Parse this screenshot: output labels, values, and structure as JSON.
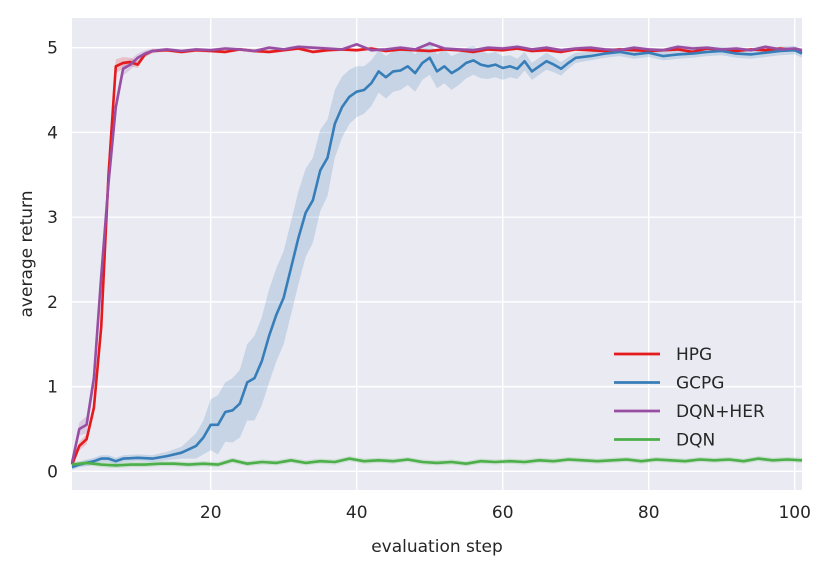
{
  "chart_data": {
    "type": "line",
    "title": "",
    "xlabel": "evaluation step",
    "ylabel": "average return",
    "xlim": [
      1,
      101
    ],
    "ylim": [
      -0.22,
      5.35
    ],
    "xticks": [
      20,
      40,
      60,
      80,
      100
    ],
    "yticks": [
      0,
      1,
      2,
      3,
      4,
      5
    ],
    "grid": true,
    "legend_position": "lower-right",
    "background": "#eaeaf2",
    "series": [
      {
        "name": "HPG",
        "color": "#e41a1c",
        "x": [
          1,
          2,
          3,
          4,
          5,
          6,
          7,
          8,
          9,
          10,
          11,
          12,
          14,
          16,
          18,
          20,
          22,
          24,
          26,
          28,
          30,
          32,
          34,
          36,
          38,
          40,
          42,
          44,
          46,
          48,
          50,
          52,
          54,
          56,
          58,
          60,
          62,
          64,
          66,
          68,
          70,
          72,
          74,
          76,
          78,
          80,
          82,
          84,
          86,
          88,
          90,
          92,
          94,
          96,
          98,
          100,
          101
        ],
        "y": [
          0.08,
          0.3,
          0.38,
          0.75,
          1.7,
          3.5,
          4.78,
          4.82,
          4.83,
          4.8,
          4.92,
          4.96,
          4.97,
          4.95,
          4.97,
          4.96,
          4.95,
          4.98,
          4.96,
          4.95,
          4.97,
          4.99,
          4.95,
          4.97,
          4.98,
          4.97,
          4.99,
          4.96,
          4.98,
          4.97,
          4.96,
          4.98,
          4.97,
          4.95,
          4.98,
          4.97,
          4.99,
          4.96,
          4.97,
          4.95,
          4.98,
          4.97,
          4.96,
          4.98,
          4.97,
          4.96,
          4.97,
          4.98,
          4.95,
          4.99,
          4.97,
          4.96,
          4.98,
          4.97,
          4.99,
          4.97,
          4.96
        ],
        "band": [
          0.05,
          0.05,
          0.06,
          0.08,
          0.08,
          0.1,
          0.08,
          0.07,
          0.05,
          0.04,
          0.03,
          0.02,
          0.02,
          0.02,
          0.02,
          0.02,
          0.02,
          0.02,
          0.02,
          0.02,
          0.02,
          0.02,
          0.02,
          0.02,
          0.02,
          0.02,
          0.02,
          0.02,
          0.02,
          0.02,
          0.02,
          0.02,
          0.02,
          0.02,
          0.02,
          0.02,
          0.02,
          0.02,
          0.02,
          0.02,
          0.02,
          0.02,
          0.02,
          0.02,
          0.02,
          0.02,
          0.02,
          0.02,
          0.02,
          0.02,
          0.02,
          0.02,
          0.02,
          0.02,
          0.02,
          0.02,
          0.02
        ]
      },
      {
        "name": "GCPG",
        "color": "#377eb8",
        "x": [
          1,
          2,
          3,
          4,
          5,
          6,
          7,
          8,
          10,
          12,
          14,
          16,
          18,
          19,
          20,
          21,
          22,
          23,
          24,
          25,
          26,
          27,
          28,
          29,
          30,
          31,
          32,
          33,
          34,
          35,
          36,
          37,
          38,
          39,
          40,
          41,
          42,
          43,
          44,
          45,
          46,
          47,
          48,
          49,
          50,
          51,
          52,
          53,
          54,
          55,
          56,
          57,
          58,
          59,
          60,
          61,
          62,
          63,
          64,
          65,
          66,
          67,
          68,
          69,
          70,
          72,
          74,
          76,
          78,
          80,
          82,
          84,
          86,
          88,
          90,
          92,
          94,
          96,
          98,
          100,
          101
        ],
        "y": [
          0.05,
          0.08,
          0.1,
          0.12,
          0.15,
          0.15,
          0.12,
          0.15,
          0.16,
          0.15,
          0.18,
          0.22,
          0.3,
          0.4,
          0.55,
          0.55,
          0.7,
          0.72,
          0.8,
          1.05,
          1.1,
          1.3,
          1.6,
          1.85,
          2.05,
          2.4,
          2.75,
          3.05,
          3.2,
          3.55,
          3.7,
          4.1,
          4.3,
          4.42,
          4.48,
          4.5,
          4.58,
          4.72,
          4.65,
          4.72,
          4.73,
          4.78,
          4.7,
          4.82,
          4.88,
          4.72,
          4.78,
          4.7,
          4.75,
          4.82,
          4.85,
          4.8,
          4.78,
          4.8,
          4.76,
          4.78,
          4.75,
          4.84,
          4.72,
          4.78,
          4.84,
          4.8,
          4.75,
          4.82,
          4.88,
          4.9,
          4.93,
          4.95,
          4.92,
          4.94,
          4.9,
          4.92,
          4.93,
          4.95,
          4.96,
          4.93,
          4.92,
          4.94,
          4.96,
          4.97,
          4.93
        ],
        "band": [
          0.03,
          0.03,
          0.04,
          0.04,
          0.04,
          0.04,
          0.04,
          0.04,
          0.04,
          0.04,
          0.05,
          0.07,
          0.15,
          0.2,
          0.3,
          0.35,
          0.35,
          0.38,
          0.4,
          0.45,
          0.5,
          0.52,
          0.55,
          0.55,
          0.55,
          0.55,
          0.55,
          0.52,
          0.5,
          0.48,
          0.45,
          0.4,
          0.36,
          0.32,
          0.3,
          0.28,
          0.27,
          0.25,
          0.25,
          0.24,
          0.23,
          0.22,
          0.22,
          0.2,
          0.2,
          0.2,
          0.2,
          0.2,
          0.19,
          0.18,
          0.17,
          0.16,
          0.15,
          0.15,
          0.14,
          0.13,
          0.12,
          0.11,
          0.1,
          0.1,
          0.1,
          0.09,
          0.08,
          0.07,
          0.06,
          0.05,
          0.05,
          0.05,
          0.05,
          0.05,
          0.05,
          0.05,
          0.05,
          0.05,
          0.05,
          0.05,
          0.05,
          0.05,
          0.05,
          0.05,
          0.05
        ]
      },
      {
        "name": "DQN+HER",
        "color": "#984ea3",
        "x": [
          1,
          2,
          3,
          4,
          5,
          6,
          7,
          8,
          9,
          10,
          11,
          12,
          13,
          14,
          16,
          18,
          20,
          22,
          24,
          26,
          28,
          30,
          32,
          34,
          36,
          38,
          40,
          42,
          44,
          46,
          48,
          50,
          52,
          54,
          56,
          58,
          60,
          62,
          64,
          66,
          68,
          70,
          72,
          74,
          76,
          78,
          80,
          82,
          84,
          86,
          88,
          90,
          92,
          94,
          96,
          98,
          100,
          101
        ],
        "y": [
          0.1,
          0.5,
          0.55,
          1.1,
          2.3,
          3.4,
          4.3,
          4.75,
          4.8,
          4.88,
          4.93,
          4.96,
          4.97,
          4.98,
          4.96,
          4.98,
          4.97,
          4.99,
          4.98,
          4.96,
          5.0,
          4.98,
          5.01,
          5.0,
          4.99,
          4.98,
          5.04,
          4.97,
          4.98,
          5.0,
          4.98,
          5.05,
          4.99,
          4.98,
          4.97,
          5.0,
          4.99,
          5.01,
          4.98,
          5.0,
          4.97,
          4.99,
          5.0,
          4.98,
          4.97,
          5.0,
          4.98,
          4.97,
          5.01,
          4.99,
          5.0,
          4.98,
          4.99,
          4.97,
          5.01,
          4.98,
          4.99,
          4.97
        ],
        "band": [
          0.05,
          0.08,
          0.1,
          0.12,
          0.12,
          0.12,
          0.1,
          0.08,
          0.06,
          0.05,
          0.04,
          0.03,
          0.02,
          0.02,
          0.02,
          0.02,
          0.02,
          0.02,
          0.02,
          0.02,
          0.02,
          0.02,
          0.02,
          0.02,
          0.02,
          0.02,
          0.02,
          0.02,
          0.02,
          0.02,
          0.02,
          0.02,
          0.02,
          0.02,
          0.02,
          0.02,
          0.02,
          0.02,
          0.02,
          0.02,
          0.02,
          0.02,
          0.02,
          0.02,
          0.02,
          0.02,
          0.02,
          0.02,
          0.02,
          0.02,
          0.02,
          0.02,
          0.02,
          0.02,
          0.02,
          0.02,
          0.02,
          0.02
        ]
      },
      {
        "name": "DQN",
        "color": "#4daf4a",
        "x": [
          1,
          3,
          5,
          7,
          9,
          11,
          13,
          15,
          17,
          19,
          21,
          23,
          25,
          27,
          29,
          31,
          33,
          35,
          37,
          39,
          41,
          43,
          45,
          47,
          49,
          51,
          53,
          55,
          57,
          59,
          61,
          63,
          65,
          67,
          69,
          71,
          73,
          75,
          77,
          79,
          81,
          83,
          85,
          87,
          89,
          91,
          93,
          95,
          97,
          99,
          101
        ],
        "y": [
          0.08,
          0.1,
          0.08,
          0.07,
          0.08,
          0.08,
          0.09,
          0.09,
          0.08,
          0.09,
          0.08,
          0.13,
          0.09,
          0.11,
          0.1,
          0.13,
          0.1,
          0.12,
          0.11,
          0.15,
          0.12,
          0.13,
          0.12,
          0.14,
          0.11,
          0.1,
          0.11,
          0.09,
          0.12,
          0.11,
          0.12,
          0.11,
          0.13,
          0.12,
          0.14,
          0.13,
          0.12,
          0.13,
          0.14,
          0.12,
          0.14,
          0.13,
          0.12,
          0.14,
          0.13,
          0.14,
          0.12,
          0.15,
          0.13,
          0.14,
          0.13
        ],
        "band": [
          0.03,
          0.03,
          0.03,
          0.03,
          0.03,
          0.03,
          0.03,
          0.03,
          0.03,
          0.03,
          0.03,
          0.03,
          0.03,
          0.03,
          0.03,
          0.03,
          0.03,
          0.03,
          0.03,
          0.03,
          0.03,
          0.03,
          0.03,
          0.03,
          0.03,
          0.03,
          0.03,
          0.03,
          0.03,
          0.03,
          0.03,
          0.03,
          0.03,
          0.03,
          0.03,
          0.03,
          0.03,
          0.03,
          0.03,
          0.03,
          0.03,
          0.03,
          0.03,
          0.03,
          0.03,
          0.03,
          0.03,
          0.03,
          0.03,
          0.03,
          0.03
        ]
      }
    ]
  }
}
